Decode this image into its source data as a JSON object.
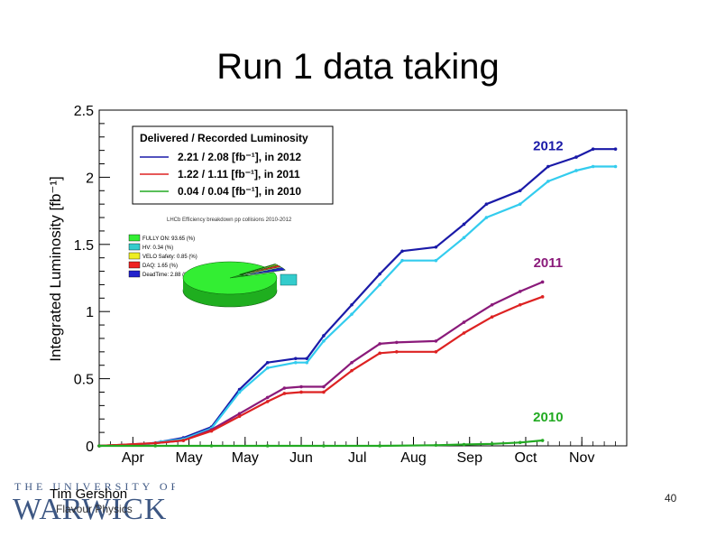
{
  "slide": {
    "title": "Run 1 data taking",
    "author": "Tim Gershon",
    "subtitle": "Flavour Physics",
    "page_number": "40",
    "logo": {
      "top": "THE UNIVERSITY OF",
      "main": "WARWICK"
    }
  },
  "colors": {
    "y2012_outer": "#1a1aa8",
    "y2012_inner": "#33ccee",
    "y2011_outer": "#8a1a7a",
    "y2011_inner": "#dd2222",
    "y2010": "#22aa22",
    "logo": "#1c3a6e"
  },
  "chart_data": {
    "type": "line",
    "ylabel": "Integrated Luminosity [fb⁻¹]",
    "ylim": [
      0,
      2.5
    ],
    "yticks": [
      "0",
      "0.5",
      "1",
      "1.5",
      "2",
      "2.5"
    ],
    "xlim": [
      0,
      9.4
    ],
    "x_ticks": [
      {
        "label": "Apr",
        "x": 0.6
      },
      {
        "label": "May",
        "x": 1.6
      },
      {
        "label": "May",
        "x": 2.6
      },
      {
        "label": "Jun",
        "x": 3.6
      },
      {
        "label": "Jul",
        "x": 4.6
      },
      {
        "label": "Aug",
        "x": 5.6
      },
      {
        "label": "Sep",
        "x": 6.6
      },
      {
        "label": "Oct",
        "x": 7.6
      },
      {
        "label": "Nov",
        "x": 8.6
      }
    ],
    "year_labels": [
      {
        "text": "2012",
        "x": 8.0,
        "y": 2.2,
        "color": "#1a1aa8"
      },
      {
        "text": "2011",
        "x": 8.0,
        "y": 1.33,
        "color": "#8a1a7a"
      },
      {
        "text": "2010",
        "x": 8.0,
        "y": 0.18,
        "color": "#22aa22"
      }
    ],
    "legend": {
      "title": "Delivered / Recorded Luminosity",
      "entries": [
        {
          "text": "2.21 / 2.08 [fb⁻¹], in 2012",
          "color": "#1a1aa8"
        },
        {
          "text": "1.22 / 1.11 [fb⁻¹], in 2011",
          "color": "#dd2222"
        },
        {
          "text": "0.04 / 0.04 [fb⁻¹], in 2010",
          "color": "#22aa22"
        }
      ]
    },
    "series": [
      {
        "name": "2012 delivered",
        "color": "#1a1aa8",
        "x": [
          0.0,
          0.8,
          1.1,
          1.5,
          2.0,
          2.5,
          3.0,
          3.5,
          3.7,
          4.0,
          4.5,
          5.0,
          5.4,
          6.0,
          6.5,
          6.9,
          7.5,
          8.0,
          8.5,
          8.8,
          9.2
        ],
        "y": [
          0.0,
          0.01,
          0.03,
          0.06,
          0.14,
          0.42,
          0.62,
          0.65,
          0.65,
          0.82,
          1.05,
          1.28,
          1.45,
          1.48,
          1.65,
          1.8,
          1.9,
          2.08,
          2.15,
          2.21,
          2.21
        ]
      },
      {
        "name": "2012 recorded",
        "color": "#33ccee",
        "x": [
          0.0,
          0.8,
          1.1,
          1.5,
          2.0,
          2.5,
          3.0,
          3.5,
          3.7,
          4.0,
          4.5,
          5.0,
          5.4,
          6.0,
          6.5,
          6.9,
          7.5,
          8.0,
          8.5,
          8.8,
          9.2
        ],
        "y": [
          0.0,
          0.01,
          0.03,
          0.05,
          0.13,
          0.4,
          0.58,
          0.62,
          0.62,
          0.78,
          0.98,
          1.2,
          1.38,
          1.38,
          1.55,
          1.7,
          1.8,
          1.97,
          2.05,
          2.08,
          2.08
        ]
      },
      {
        "name": "2011 delivered",
        "color": "#8a1a7a",
        "x": [
          0.0,
          1.0,
          1.5,
          2.0,
          2.5,
          3.0,
          3.3,
          3.6,
          4.0,
          4.5,
          5.0,
          5.3,
          6.0,
          6.5,
          7.0,
          7.5,
          7.9
        ],
        "y": [
          0.0,
          0.02,
          0.04,
          0.12,
          0.24,
          0.36,
          0.43,
          0.44,
          0.44,
          0.62,
          0.76,
          0.77,
          0.78,
          0.92,
          1.05,
          1.15,
          1.22
        ]
      },
      {
        "name": "2011 recorded",
        "color": "#dd2222",
        "x": [
          0.0,
          1.0,
          1.5,
          2.0,
          2.5,
          3.0,
          3.3,
          3.6,
          4.0,
          4.5,
          5.0,
          5.3,
          6.0,
          6.5,
          7.0,
          7.5,
          7.9
        ],
        "y": [
          0.0,
          0.02,
          0.04,
          0.11,
          0.22,
          0.33,
          0.39,
          0.4,
          0.4,
          0.56,
          0.69,
          0.7,
          0.7,
          0.84,
          0.96,
          1.05,
          1.11
        ]
      },
      {
        "name": "2010 delivered",
        "color": "#22aa22",
        "x": [
          0.0,
          1.0,
          2.0,
          3.0,
          4.0,
          5.0,
          6.0,
          6.5,
          7.0,
          7.5,
          7.9
        ],
        "y": [
          0.0,
          0.0,
          0.0,
          0.0,
          0.0,
          0.0,
          0.005,
          0.01,
          0.015,
          0.025,
          0.04
        ]
      }
    ],
    "inset": {
      "title": "LHCb Efficiency breakdown pp collisions 2010-2012",
      "type": "pie",
      "items": [
        {
          "label": "FULLY ON: 93.65 (%)",
          "value": 93.65,
          "color": "#33ee33"
        },
        {
          "label": "HV: 0.34 (%)",
          "value": 0.34,
          "color": "#33cccc"
        },
        {
          "label": "VELO Safety: 0.85 (%)",
          "value": 0.85,
          "color": "#eeee22"
        },
        {
          "label": "DAQ: 1.65 (%)",
          "value": 1.65,
          "color": "#ee2222"
        },
        {
          "label": "DeadTime: 2.88 (%)",
          "value": 2.88,
          "color": "#2222cc"
        }
      ]
    }
  }
}
